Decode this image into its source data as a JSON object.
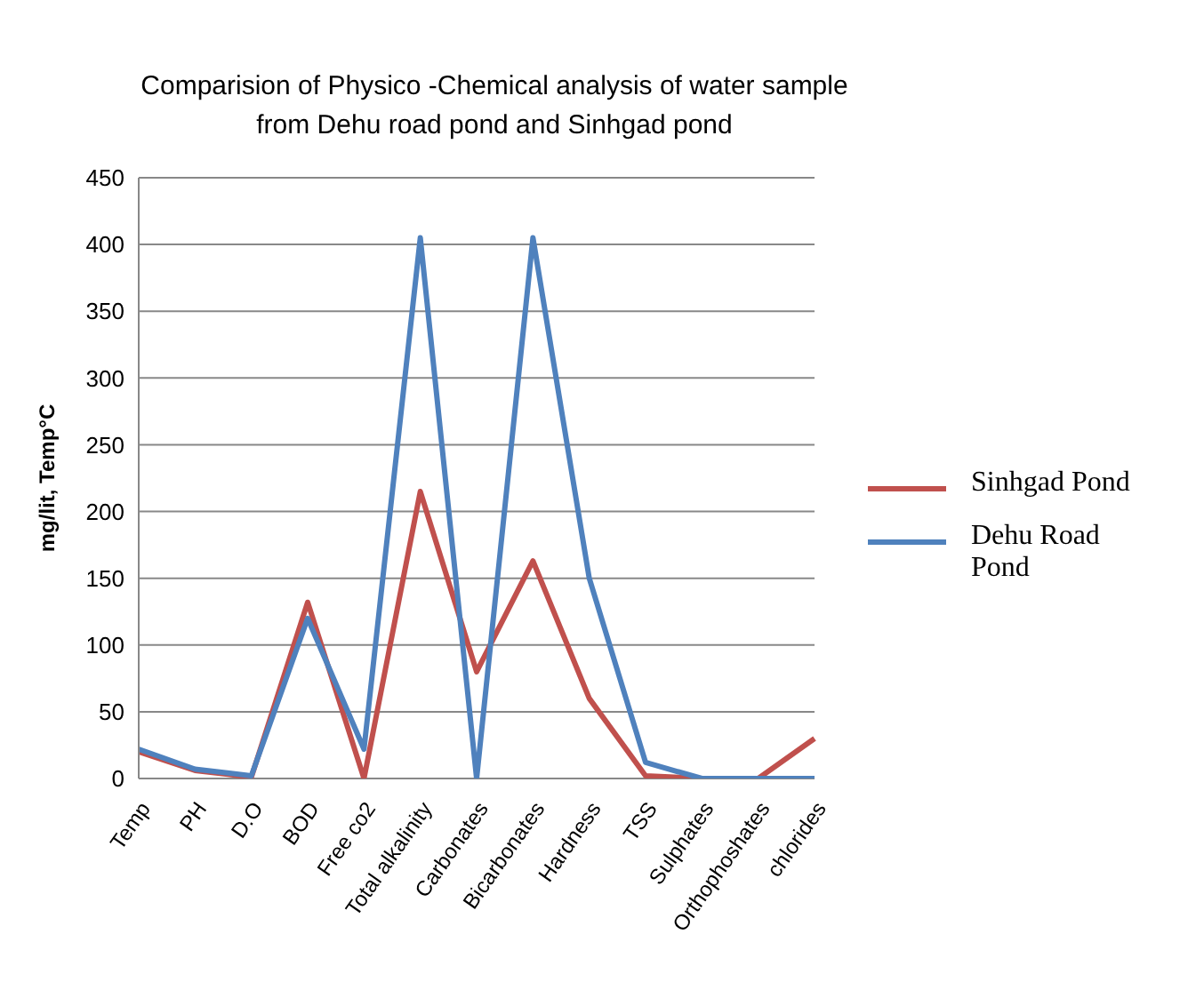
{
  "chart_data": {
    "type": "line",
    "title": "Comparision of Physico -Chemical analysis of water sample from Dehu road pond and Sinhgad pond",
    "ylabel": "mg/lit, Temp°C",
    "categories": [
      "Temp",
      "PH",
      "D.O",
      "BOD",
      "Free co2",
      "Total alkalinity",
      "Carbonates",
      "Bicarbonates",
      "Hardness",
      "TSS",
      "Sulphates",
      "Orthophoshates",
      "chlorides"
    ],
    "series": [
      {
        "name": "Sinhgad Pond",
        "color": "#c0504d",
        "values": [
          20,
          6,
          1,
          132,
          0,
          215,
          80,
          163,
          60,
          2,
          0,
          0,
          30
        ]
      },
      {
        "name": "Dehu Road Pond",
        "color": "#4f81bd",
        "values": [
          22,
          7,
          2,
          120,
          22,
          405,
          0,
          405,
          150,
          12,
          0,
          0,
          0
        ]
      }
    ],
    "ylim": [
      0,
      450
    ],
    "yticks": [
      0,
      50,
      100,
      150,
      200,
      250,
      300,
      350,
      400,
      450
    ],
    "grid": "y",
    "legend": "right",
    "marker": "none",
    "line_style": "solid"
  }
}
